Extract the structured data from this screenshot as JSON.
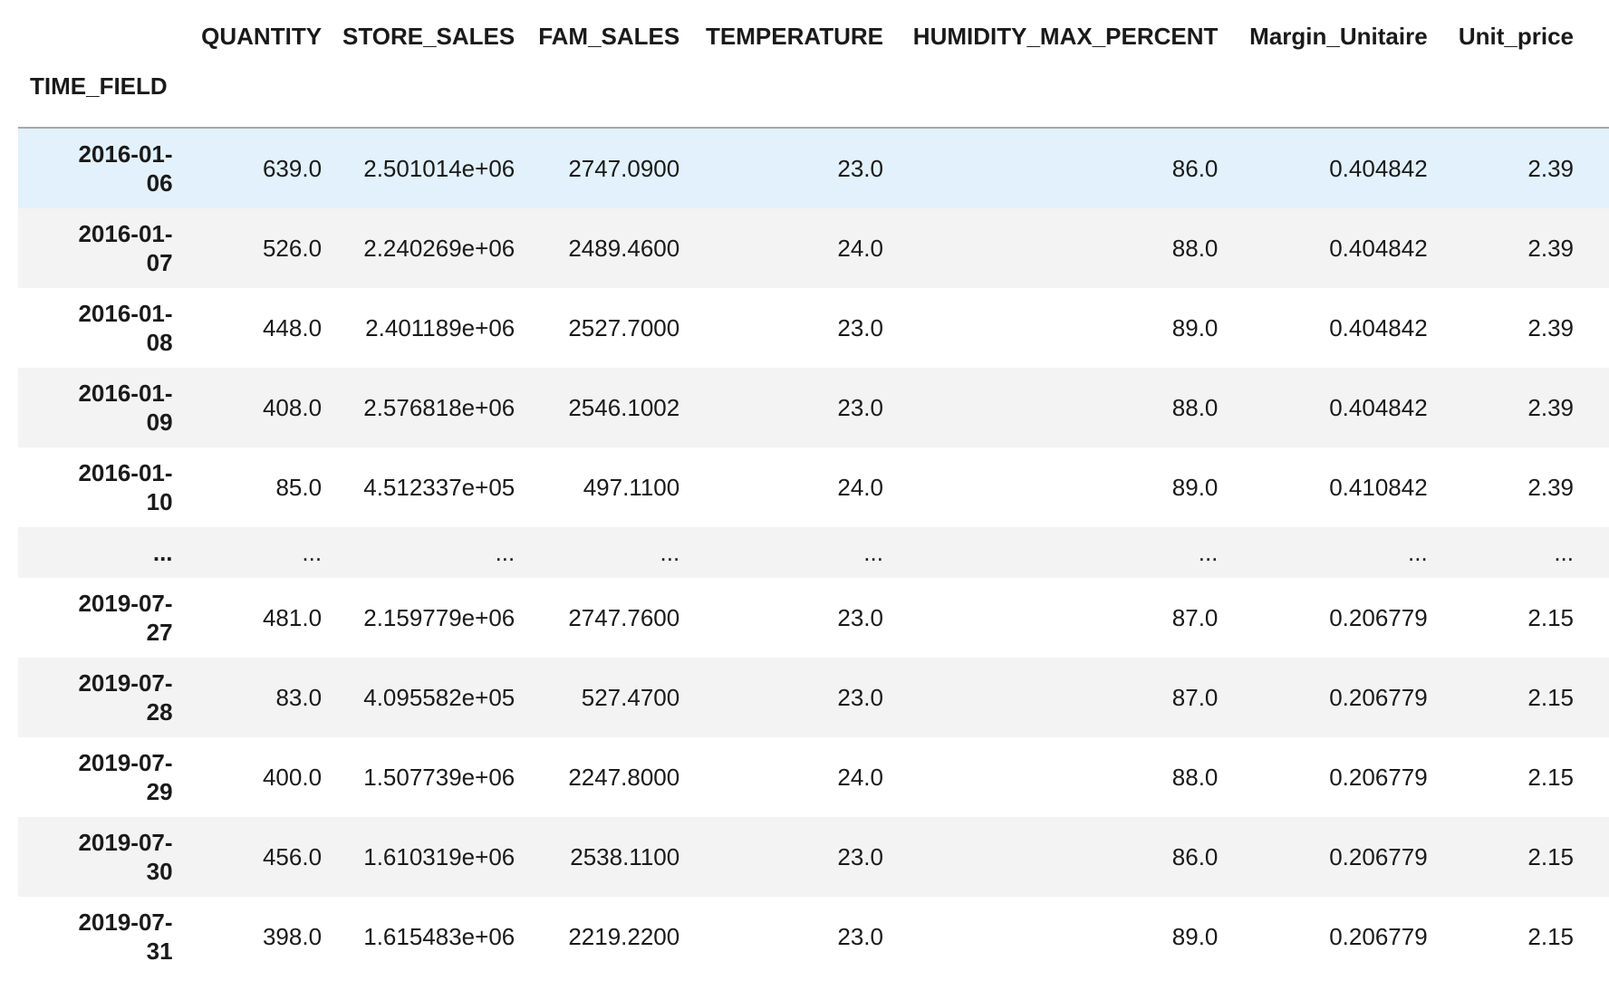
{
  "table": {
    "columns": [
      "QUANTITY",
      "STORE_SALES",
      "FAM_SALES",
      "TEMPERATURE",
      "HUMIDITY_MAX_PERCENT",
      "Margin_Unitaire",
      "Unit_price"
    ],
    "index_name": "TIME_FIELD",
    "rows": [
      {
        "date_a": "2016-01-",
        "date_b": "06",
        "values": [
          "639.0",
          "2.501014e+06",
          "2747.0900",
          "23.0",
          "86.0",
          "0.404842",
          "2.39"
        ]
      },
      {
        "date_a": "2016-01-",
        "date_b": "07",
        "values": [
          "526.0",
          "2.240269e+06",
          "2489.4600",
          "24.0",
          "88.0",
          "0.404842",
          "2.39"
        ]
      },
      {
        "date_a": "2016-01-",
        "date_b": "08",
        "values": [
          "448.0",
          "2.401189e+06",
          "2527.7000",
          "23.0",
          "89.0",
          "0.404842",
          "2.39"
        ]
      },
      {
        "date_a": "2016-01-",
        "date_b": "09",
        "values": [
          "408.0",
          "2.576818e+06",
          "2546.1002",
          "23.0",
          "88.0",
          "0.404842",
          "2.39"
        ]
      },
      {
        "date_a": "2016-01-",
        "date_b": "10",
        "values": [
          "85.0",
          "4.512337e+05",
          "497.1100",
          "24.0",
          "89.0",
          "0.410842",
          "2.39"
        ]
      },
      {
        "ellipsis": true,
        "date_a": "...",
        "values": [
          "...",
          "...",
          "...",
          "...",
          "...",
          "...",
          "..."
        ]
      },
      {
        "date_a": "2019-07-",
        "date_b": "27",
        "values": [
          "481.0",
          "2.159779e+06",
          "2747.7600",
          "23.0",
          "87.0",
          "0.206779",
          "2.15"
        ]
      },
      {
        "date_a": "2019-07-",
        "date_b": "28",
        "values": [
          "83.0",
          "4.095582e+05",
          "527.4700",
          "23.0",
          "87.0",
          "0.206779",
          "2.15"
        ]
      },
      {
        "date_a": "2019-07-",
        "date_b": "29",
        "values": [
          "400.0",
          "1.507739e+06",
          "2247.8000",
          "24.0",
          "88.0",
          "0.206779",
          "2.15"
        ]
      },
      {
        "date_a": "2019-07-",
        "date_b": "30",
        "values": [
          "456.0",
          "1.610319e+06",
          "2538.1100",
          "23.0",
          "86.0",
          "0.206779",
          "2.15"
        ]
      },
      {
        "date_a": "2019-07-",
        "date_b": "31",
        "values": [
          "398.0",
          "1.615483e+06",
          "2219.2200",
          "23.0",
          "89.0",
          "0.206779",
          "2.15"
        ]
      }
    ],
    "highlight_color": "#e2f1fb",
    "stripe_color": "#f3f3f3"
  }
}
